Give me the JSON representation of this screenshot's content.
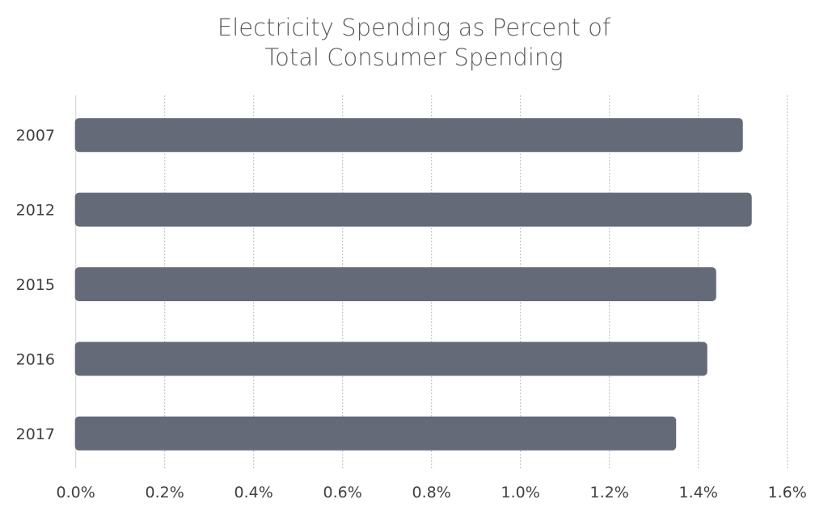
{
  "chart_data": {
    "type": "bar",
    "orientation": "horizontal",
    "title_lines": [
      "Electricity Spending as Percent of",
      "Total Consumer Spending"
    ],
    "categories": [
      "2007",
      "2012",
      "2015",
      "2016",
      "2017"
    ],
    "values": [
      1.5,
      1.52,
      1.44,
      1.42,
      1.35
    ],
    "unit": "%",
    "xlim": [
      0,
      1.6
    ],
    "xticks": [
      "0.0%",
      "0.2%",
      "0.4%",
      "0.6%",
      "0.8%",
      "1.0%",
      "1.2%",
      "1.4%",
      "1.6%"
    ],
    "xlabel": "",
    "ylabel": "",
    "grid": "vertical dotted",
    "legend": "none",
    "bar_color": "#646a78"
  }
}
